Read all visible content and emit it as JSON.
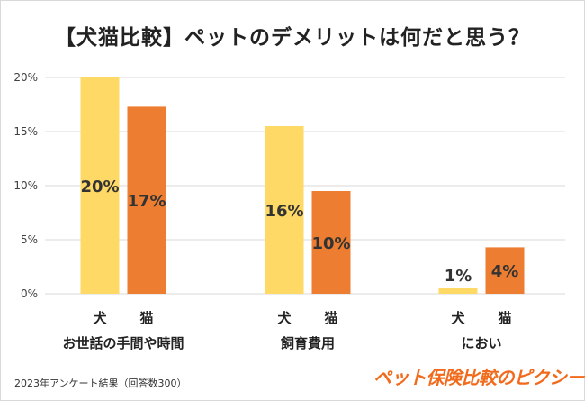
{
  "title": "【犬猫比較】ペットのデメリットは何だと思う？",
  "chart_data": {
    "type": "bar",
    "categories": [
      "お世話の手間や時間",
      "飼育費用",
      "におい"
    ],
    "series": [
      {
        "name": "犬",
        "values": [
          20,
          15.5,
          0.5
        ],
        "labels": [
          "20%",
          "16%",
          "1%"
        ],
        "color": "#ffd966"
      },
      {
        "name": "猫",
        "values": [
          17.3,
          9.5,
          4.3
        ],
        "labels": [
          "17%",
          "10%",
          "4%"
        ],
        "color": "#ed7d31"
      }
    ],
    "ylim": [
      0,
      20
    ],
    "yticks": [
      0,
      5,
      10,
      15,
      20
    ],
    "ytick_labels": [
      "0%",
      "5%",
      "10%",
      "15%",
      "20%"
    ],
    "grid": true
  },
  "footnote": "2023年アンケート結果（回答数300）",
  "logo_text": "ペット保険比較のピクシー",
  "colors": {
    "axis_text": "#404040",
    "grid": "#d9d9d9",
    "label_dark": "#333333"
  }
}
